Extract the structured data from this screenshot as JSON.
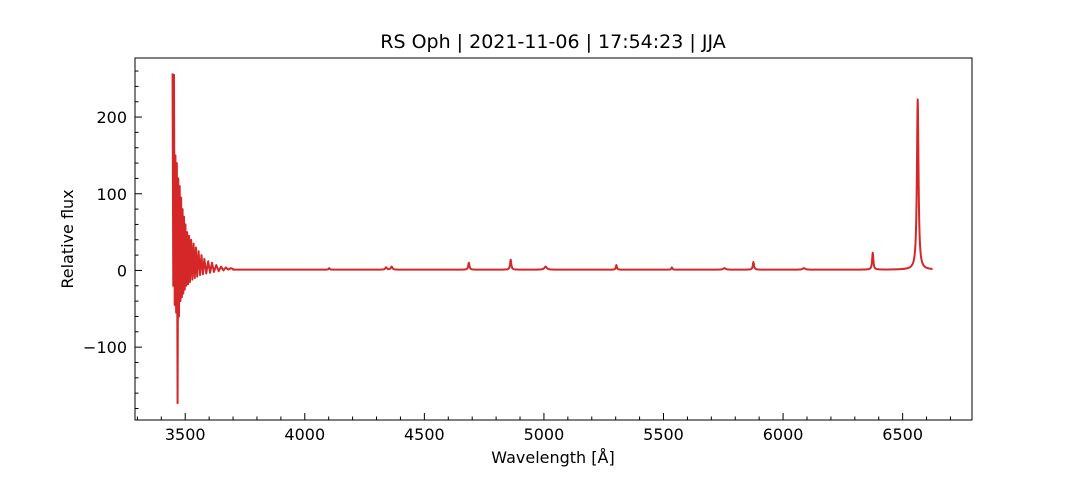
{
  "chart_data": {
    "type": "line",
    "title": "RS Oph | 2021-11-06 | 17:54:23 | JJA",
    "xlabel": "Wavelength [Å]",
    "ylabel": "Relative flux",
    "xlim": [
      3290,
      6790
    ],
    "ylim": [
      -195,
      277
    ],
    "x_ticks": [
      3500,
      4000,
      4500,
      5000,
      5500,
      6000,
      6500
    ],
    "x_tick_labels": [
      "3500",
      "4000",
      "4500",
      "5000",
      "5500",
      "6000",
      "6500"
    ],
    "y_ticks": [
      -100,
      0,
      100,
      200
    ],
    "y_tick_labels": [
      "−100",
      "0",
      "100",
      "200"
    ],
    "grid": false,
    "legend": "none",
    "series": [
      {
        "color": "#d62728",
        "continuum": 1,
        "range": [
          3445,
          6625
        ],
        "noise_region": {
          "start": 3445,
          "end": 3700
        },
        "x": [
          3447,
          3450,
          3453,
          3456,
          3459,
          3462,
          3465,
          3468,
          3471,
          3474,
          3477,
          3480,
          3483,
          3486,
          3489,
          3492,
          3495,
          3498,
          3501,
          3504,
          3508,
          3512,
          3516,
          3520,
          3525,
          3530,
          3535,
          3540,
          3545,
          3550,
          3556,
          3562,
          3568,
          3574,
          3580,
          3588,
          3596,
          3604,
          3612,
          3620,
          3630,
          3640,
          3650,
          3660,
          3670,
          3680,
          3690,
          3700
        ],
        "y": [
          257,
          -20,
          255,
          -45,
          150,
          -55,
          140,
          -173,
          120,
          -60,
          110,
          -40,
          95,
          -35,
          80,
          -30,
          70,
          -25,
          60,
          -20,
          50,
          -18,
          45,
          -15,
          40,
          -12,
          35,
          -10,
          30,
          -8,
          25,
          -6,
          20,
          -5,
          15,
          -4,
          12,
          -3,
          10,
          -2,
          7,
          -1,
          5,
          0,
          4,
          1,
          3,
          2
        ],
        "emission_lines": [
          {
            "x": 4102,
            "peak": 2,
            "width": 3
          },
          {
            "x": 4340,
            "peak": 3,
            "width": 4
          },
          {
            "x": 4363,
            "peak": 4,
            "width": 4
          },
          {
            "x": 4686,
            "peak": 9,
            "width": 3
          },
          {
            "x": 4861,
            "peak": 13,
            "width": 3
          },
          {
            "x": 5007,
            "peak": 4,
            "width": 6
          },
          {
            "x": 5303,
            "peak": 6,
            "width": 2.5
          },
          {
            "x": 5535,
            "peak": 3,
            "width": 2.5
          },
          {
            "x": 5755,
            "peak": 2,
            "width": 6
          },
          {
            "x": 5876,
            "peak": 10,
            "width": 3
          },
          {
            "x": 6087,
            "peak": 2,
            "width": 6
          },
          {
            "x": 6375,
            "peak": 22,
            "width": 3
          },
          {
            "x": 6563,
            "peak": 222,
            "width": 4
          }
        ]
      }
    ]
  }
}
